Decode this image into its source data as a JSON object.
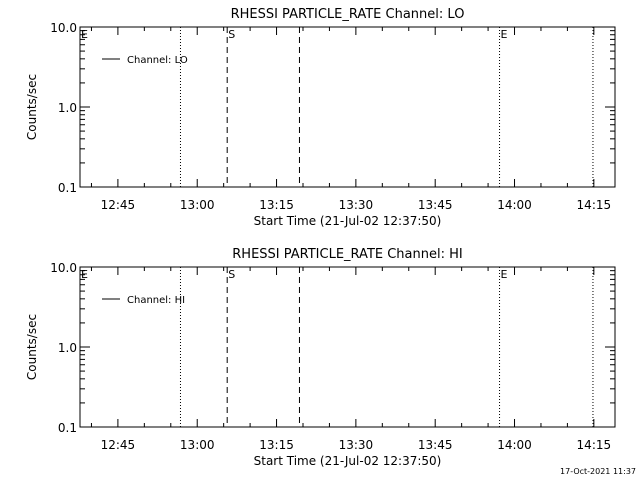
{
  "footer_timestamp": "17-Oct-2021 11:37",
  "chart_data": [
    {
      "type": "line",
      "title": "RHESSI PARTICLE_RATE Channel: LO",
      "xlabel": "Start Time (21-Jul-02 12:37:50)",
      "ylabel": "Counts/sec",
      "yscale": "log",
      "ylim": [
        0.1,
        10.0
      ],
      "xlim": [
        "12:37:50",
        "14:19:00"
      ],
      "x_ticks": [
        "12:45",
        "13:00",
        "13:15",
        "13:30",
        "13:45",
        "14:00",
        "14:15"
      ],
      "y_ticks": [
        "0.1",
        "1.0",
        "10.0"
      ],
      "legend": {
        "position": "top-left",
        "entries": [
          "Channel: LO"
        ]
      },
      "series": [
        {
          "name": "Channel: LO",
          "values": []
        }
      ],
      "markers": [
        {
          "time": "12:56:50",
          "style": "dotted",
          "label": ""
        },
        {
          "time": "13:05:40",
          "style": "dashed",
          "label": "S"
        },
        {
          "time": "13:19:20",
          "style": "dashed",
          "label": ""
        },
        {
          "time": "13:57:10",
          "style": "dotted",
          "label": "E"
        },
        {
          "time": "14:14:50",
          "style": "dotted",
          "label": ""
        }
      ],
      "corner_label": "E",
      "grid": false
    },
    {
      "type": "line",
      "title": "RHESSI PARTICLE_RATE Channel: HI",
      "xlabel": "Start Time (21-Jul-02 12:37:50)",
      "ylabel": "Counts/sec",
      "yscale": "log",
      "ylim": [
        0.1,
        10.0
      ],
      "xlim": [
        "12:37:50",
        "14:19:00"
      ],
      "x_ticks": [
        "12:45",
        "13:00",
        "13:15",
        "13:30",
        "13:45",
        "14:00",
        "14:15"
      ],
      "y_ticks": [
        "0.1",
        "1.0",
        "10.0"
      ],
      "legend": {
        "position": "top-left",
        "entries": [
          "Channel: HI"
        ]
      },
      "series": [
        {
          "name": "Channel: HI",
          "values": []
        }
      ],
      "markers": [
        {
          "time": "12:56:50",
          "style": "dotted",
          "label": ""
        },
        {
          "time": "13:05:40",
          "style": "dashed",
          "label": "S"
        },
        {
          "time": "13:19:20",
          "style": "dashed",
          "label": ""
        },
        {
          "time": "13:57:10",
          "style": "dotted",
          "label": "E"
        },
        {
          "time": "14:14:50",
          "style": "dotted",
          "label": ""
        }
      ],
      "corner_label": "E",
      "grid": false
    }
  ]
}
